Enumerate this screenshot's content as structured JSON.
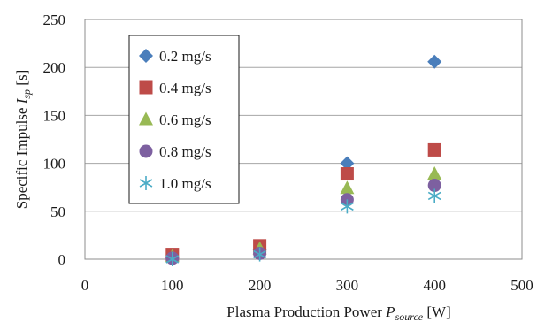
{
  "chart_data": {
    "type": "scatter",
    "xlabel_prefix": "Plasma Production Power ",
    "xlabel_symbol": "P",
    "xlabel_subscript": "source",
    "xlabel_unit": " [W]",
    "ylabel_prefix": "Specific Impulse ",
    "ylabel_symbol": "I",
    "ylabel_subscript": "sp",
    "ylabel_unit": " [s]",
    "xlim": [
      0,
      500
    ],
    "ylim": [
      0,
      250
    ],
    "x_ticks": [
      "0",
      "100",
      "200",
      "300",
      "400",
      "500"
    ],
    "y_ticks": [
      "0",
      "50",
      "100",
      "150",
      "200",
      "250"
    ],
    "grid": "horizontal",
    "legend_position": "top-left",
    "series": [
      {
        "name": "0.2 mg/s",
        "marker": "diamond",
        "color": "#4a7ebb",
        "points": [
          [
            100,
            2
          ],
          [
            200,
            10
          ],
          [
            300,
            100
          ],
          [
            400,
            206
          ]
        ]
      },
      {
        "name": "0.4 mg/s",
        "marker": "square",
        "color": "#be4b48",
        "points": [
          [
            100,
            5
          ],
          [
            200,
            14
          ],
          [
            300,
            89
          ],
          [
            400,
            114
          ]
        ]
      },
      {
        "name": "0.6 mg/s",
        "marker": "triangle",
        "color": "#98b954",
        "points": [
          [
            100,
            3
          ],
          [
            200,
            11
          ],
          [
            300,
            74
          ],
          [
            400,
            89
          ]
        ]
      },
      {
        "name": "0.8 mg/s",
        "marker": "circle",
        "color": "#7d60a0",
        "points": [
          [
            100,
            1
          ],
          [
            200,
            6
          ],
          [
            300,
            62
          ],
          [
            400,
            77
          ]
        ]
      },
      {
        "name": "1.0 mg/s",
        "marker": "asterisk",
        "color": "#4bacc6",
        "points": [
          [
            100,
            0
          ],
          [
            200,
            5
          ],
          [
            300,
            55
          ],
          [
            400,
            66
          ]
        ]
      }
    ]
  }
}
